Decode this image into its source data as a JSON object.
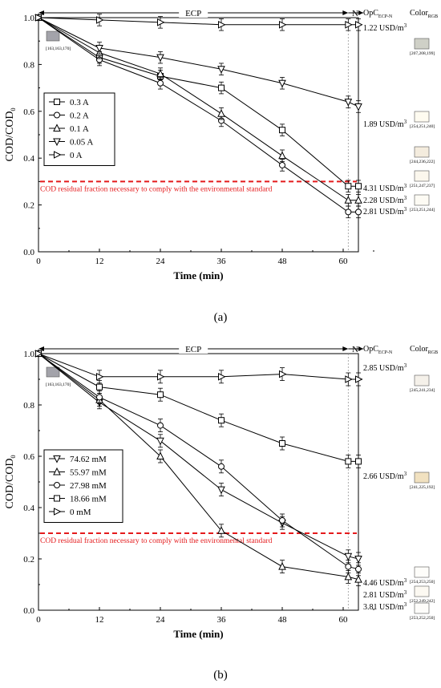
{
  "figure": {
    "panels": [
      {
        "caption": "(a)",
        "header": {
          "ecp_label": "ECP",
          "n_label": "N",
          "opc_label": "OpC",
          "opc_sub": "ECP-N",
          "color_label": "Color",
          "color_sub": "RGB"
        },
        "initial_swatch": {
          "color": "#a3a3aa",
          "label": "[163,163,170]"
        },
        "threshold_label": "COD residual fraction necessary to comply with the environmental standard",
        "cost_labels": [
          "1.22 USD/m",
          "1.89 USD/m",
          "4.31 USD/m",
          "2.28 USD/m",
          "2.81 USD/m"
        ],
        "swatches": [
          {
            "color": "#cfd0c7",
            "label": "[207,208,199]"
          },
          {
            "color": "#fefbf0",
            "label": "[254,251,240]"
          },
          {
            "color": "#f4ecde",
            "label": "[244,236,222]"
          },
          {
            "color": "#fbf7ed",
            "label": "[251,247,237]"
          },
          {
            "color": "#fdfbf4",
            "label": "[253,251,244]"
          }
        ]
      },
      {
        "caption": "(b)",
        "header": {
          "ecp_label": "ECP",
          "n_label": "N",
          "opc_label": "OpC",
          "opc_sub": "ECP-N",
          "color_label": "Color",
          "color_sub": "RGB"
        },
        "initial_swatch": {
          "color": "#a3a3aa",
          "label": "[163,163,170]"
        },
        "threshold_label": "COD residual fraction necessary to comply with the environmental standard",
        "cost_labels": [
          "2.85 USD/m",
          "2.66 USD/m",
          "4.46 USD/m",
          "2.81 USD/m",
          "3.81 USD/m"
        ],
        "swatches": [
          {
            "color": "#f5f1ea",
            "label": "[245,241,234]"
          },
          {
            "color": "#f1e1c0",
            "label": "[241,225,192]"
          },
          {
            "color": "#fefdfa",
            "label": "[254,253,250]"
          },
          {
            "color": "#fcf9f2",
            "label": "[252,249,242]"
          },
          {
            "color": "#fdfcfa",
            "label": "[253,252,250]"
          }
        ]
      }
    ]
  },
  "chart_data": [
    {
      "type": "line",
      "xlabel": "Time (min)",
      "ylabel": "COD/COD",
      "ylabel_sub": "0",
      "xlim": [
        0,
        63
      ],
      "ylim": [
        0,
        1.0
      ],
      "x_ticks": [
        "0",
        "12",
        "24",
        "36",
        "48",
        "60"
      ],
      "y_ticks": [
        "0.0",
        "0.2",
        "0.4",
        "0.6",
        "0.8",
        "1.0"
      ],
      "threshold": 0.3,
      "ecp_end": 61,
      "n_end": 63,
      "legend_position": "middle-left",
      "series": [
        {
          "name": "0.3 A",
          "marker": "square",
          "x": [
            0,
            12,
            24,
            36,
            48,
            61,
            63
          ],
          "y": [
            1.0,
            0.83,
            0.75,
            0.7,
            0.52,
            0.28,
            0.28
          ]
        },
        {
          "name": "0.2 A",
          "marker": "circle",
          "x": [
            0,
            12,
            24,
            36,
            48,
            61,
            63
          ],
          "y": [
            1.0,
            0.82,
            0.72,
            0.56,
            0.37,
            0.17,
            0.17
          ]
        },
        {
          "name": "0.1 A",
          "marker": "triangle-up",
          "x": [
            0,
            12,
            24,
            36,
            48,
            61,
            63
          ],
          "y": [
            1.0,
            0.85,
            0.76,
            0.59,
            0.41,
            0.22,
            0.22
          ]
        },
        {
          "name": "0.05 A",
          "marker": "triangle-down",
          "x": [
            0,
            12,
            24,
            36,
            48,
            61,
            63
          ],
          "y": [
            1.0,
            0.87,
            0.83,
            0.78,
            0.72,
            0.64,
            0.62
          ]
        },
        {
          "name": "0 A",
          "marker": "triangle-right",
          "x": [
            0,
            12,
            24,
            36,
            48,
            61,
            63
          ],
          "y": [
            1.0,
            0.99,
            0.98,
            0.97,
            0.97,
            0.97,
            0.97
          ]
        }
      ]
    },
    {
      "type": "line",
      "xlabel": "Time (min)",
      "ylabel": "COD/COD",
      "ylabel_sub": "0",
      "xlim": [
        0,
        63
      ],
      "ylim": [
        0,
        1.0
      ],
      "x_ticks": [
        "0",
        "12",
        "24",
        "36",
        "48",
        "60"
      ],
      "y_ticks": [
        "0.0",
        "0.2",
        "0.4",
        "0.6",
        "0.8",
        "1.0"
      ],
      "threshold": 0.3,
      "ecp_end": 61,
      "n_end": 63,
      "legend_position": "bottom-left",
      "series": [
        {
          "name": "74.62 mM",
          "marker": "triangle-down",
          "x": [
            0,
            12,
            24,
            36,
            48,
            61,
            63
          ],
          "y": [
            1.0,
            0.81,
            0.66,
            0.47,
            0.34,
            0.21,
            0.2
          ]
        },
        {
          "name": "55.97 mM",
          "marker": "triangle-up",
          "x": [
            0,
            12,
            24,
            36,
            48,
            61,
            63
          ],
          "y": [
            1.0,
            0.82,
            0.6,
            0.31,
            0.17,
            0.13,
            0.12
          ]
        },
        {
          "name": "27.98 mM",
          "marker": "circle",
          "x": [
            0,
            12,
            24,
            36,
            48,
            61,
            63
          ],
          "y": [
            1.0,
            0.83,
            0.72,
            0.56,
            0.35,
            0.17,
            0.16
          ]
        },
        {
          "name": "18.66 mM",
          "marker": "square",
          "x": [
            0,
            12,
            24,
            36,
            48,
            61,
            63
          ],
          "y": [
            1.0,
            0.87,
            0.84,
            0.74,
            0.65,
            0.58,
            0.58
          ]
        },
        {
          "name": "0 mM",
          "marker": "triangle-right",
          "x": [
            0,
            12,
            24,
            36,
            48,
            61,
            63
          ],
          "y": [
            1.0,
            0.91,
            0.91,
            0.91,
            0.92,
            0.9,
            0.9
          ]
        }
      ]
    }
  ]
}
